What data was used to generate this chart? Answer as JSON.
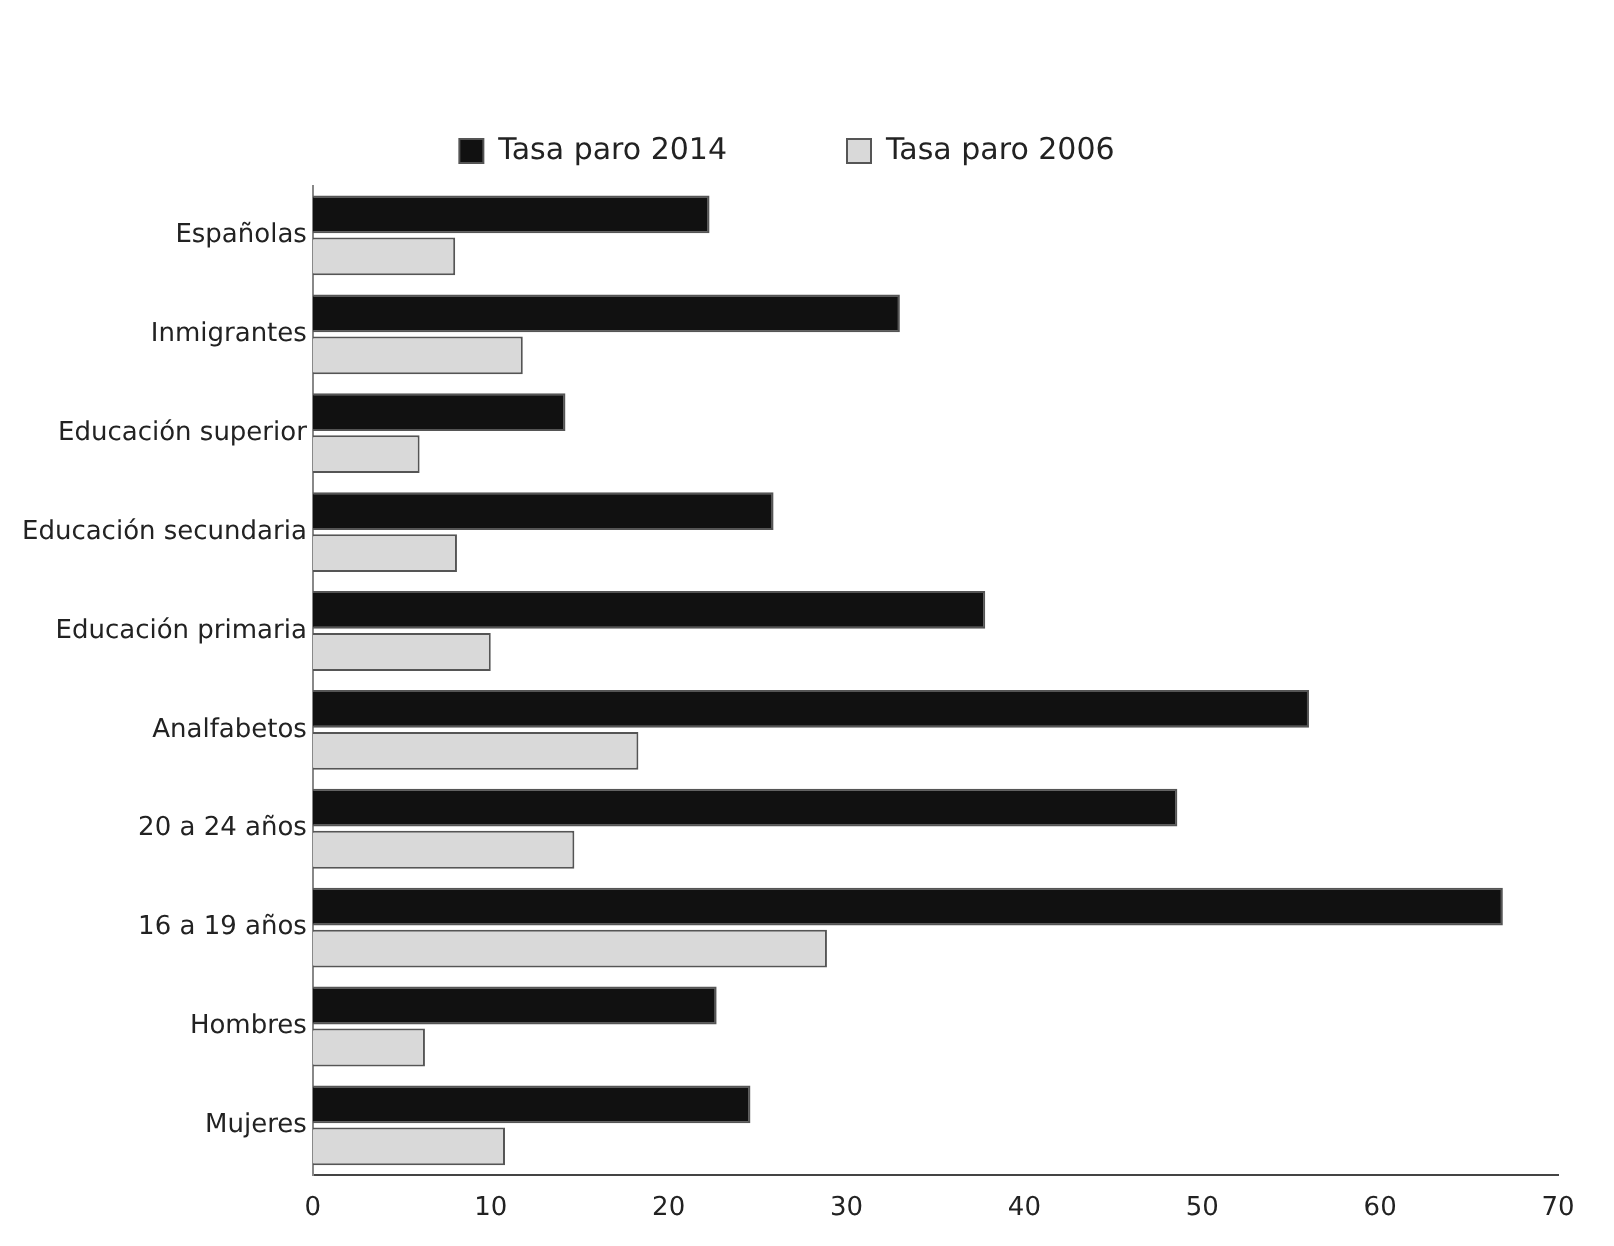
{
  "chart_data": {
    "type": "bar",
    "orientation": "horizontal",
    "categories": [
      "Españolas",
      "Inmigrantes",
      "Educación superior",
      "Educación secundaria",
      "Educación primaria",
      "Analfabetos",
      "20 a 24 años",
      "16 a 19 años",
      "Hombres",
      "Mujeres"
    ],
    "series": [
      {
        "name": "Tasa paro 2014",
        "color": "#111111",
        "values": [
          22.3,
          33.0,
          14.2,
          25.9,
          37.8,
          56.0,
          48.6,
          66.9,
          22.7,
          24.6
        ]
      },
      {
        "name": "Tasa paro 2006",
        "color": "#d9d9d9",
        "values": [
          8.0,
          11.8,
          6.0,
          8.1,
          10.0,
          18.3,
          14.7,
          28.9,
          6.3,
          10.8
        ]
      }
    ],
    "xlim": [
      0,
      70
    ],
    "xticks": [
      0,
      10,
      20,
      30,
      40,
      50,
      60,
      70
    ],
    "grid": false,
    "legend": "top"
  }
}
